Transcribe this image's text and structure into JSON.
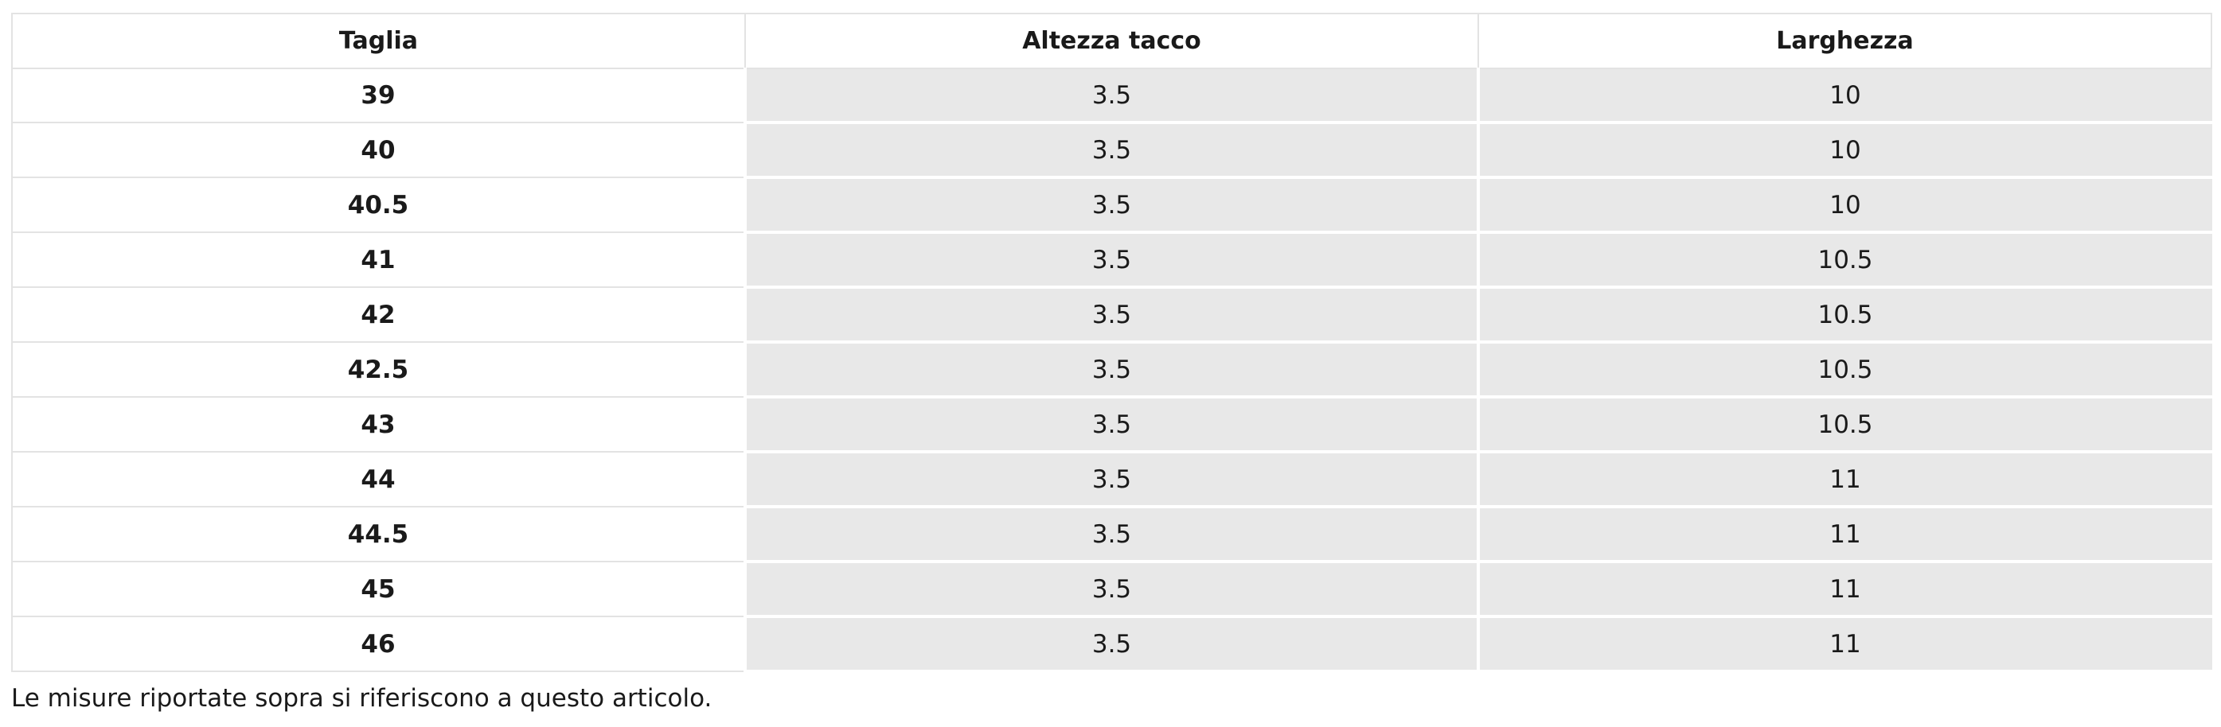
{
  "table": {
    "headers": [
      "Taglia",
      "Altezza tacco",
      "Larghezza"
    ],
    "rows": [
      {
        "taglia": "39",
        "altezza": "3.5",
        "larghezza": "10"
      },
      {
        "taglia": "40",
        "altezza": "3.5",
        "larghezza": "10"
      },
      {
        "taglia": "40.5",
        "altezza": "3.5",
        "larghezza": "10"
      },
      {
        "taglia": "41",
        "altezza": "3.5",
        "larghezza": "10.5"
      },
      {
        "taglia": "42",
        "altezza": "3.5",
        "larghezza": "10.5"
      },
      {
        "taglia": "42.5",
        "altezza": "3.5",
        "larghezza": "10.5"
      },
      {
        "taglia": "43",
        "altezza": "3.5",
        "larghezza": "10.5"
      },
      {
        "taglia": "44",
        "altezza": "3.5",
        "larghezza": "11"
      },
      {
        "taglia": "44.5",
        "altezza": "3.5",
        "larghezza": "11"
      },
      {
        "taglia": "45",
        "altezza": "3.5",
        "larghezza": "11"
      },
      {
        "taglia": "46",
        "altezza": "3.5",
        "larghezza": "11"
      }
    ]
  },
  "footnote": "Le misure riportate sopra si riferiscono a questo articolo.",
  "colors": {
    "value_cell_bg": "#e8e8e8",
    "grid_line": "#e3e3e3",
    "text": "#1a1a1a"
  }
}
